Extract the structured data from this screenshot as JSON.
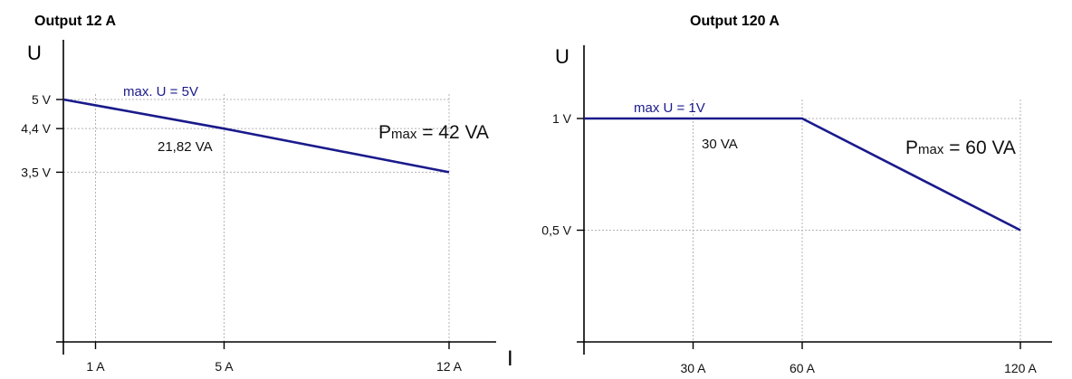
{
  "chart_data": [
    {
      "type": "line",
      "title": "Output 12 A",
      "ylabel": "U",
      "xlabel": "I",
      "x_ticks": [
        {
          "value": 1,
          "label": "1 A"
        },
        {
          "value": 5,
          "label": "5 A"
        },
        {
          "value": 12,
          "label": "12 A"
        }
      ],
      "y_ticks": [
        {
          "value": 5,
          "label": "5 V"
        },
        {
          "value": 4.4,
          "label": "4,4 V"
        },
        {
          "value": 3.5,
          "label": "3,5 V"
        }
      ],
      "series": [
        {
          "x": [
            0,
            5,
            12
          ],
          "y": [
            5,
            4.4,
            3.5
          ]
        }
      ],
      "grid": true,
      "annotations": {
        "line_label": "max. U = 5V",
        "point_label": "21,82 VA",
        "power_prefix": "P",
        "power_sub": "max",
        "power_value": " = 42 VA"
      },
      "colors": {
        "line": "#1a1a8c",
        "line_label": "#1a1a8c",
        "grid": "#b4b4b4",
        "text": "#111111"
      }
    },
    {
      "type": "line",
      "title": "Output 120 A",
      "ylabel": "U",
      "xlabel": "",
      "x_ticks": [
        {
          "value": 30,
          "label": "30 A"
        },
        {
          "value": 60,
          "label": "60 A"
        },
        {
          "value": 120,
          "label": "120 A"
        }
      ],
      "y_ticks": [
        {
          "value": 1,
          "label": "1 V"
        },
        {
          "value": 0.5,
          "label": "0,5 V"
        }
      ],
      "series": [
        {
          "x": [
            0,
            60,
            120
          ],
          "y": [
            1,
            1,
            0.5
          ]
        }
      ],
      "grid": true,
      "annotations": {
        "line_label": "max U = 1V",
        "point_label": "30 VA",
        "power_prefix": "P",
        "power_sub": "max",
        "power_value": " = 60 VA"
      },
      "colors": {
        "line": "#1a1a8c",
        "line_label": "#1a1a8c",
        "grid": "#b4b4b4",
        "text": "#111111"
      }
    }
  ]
}
